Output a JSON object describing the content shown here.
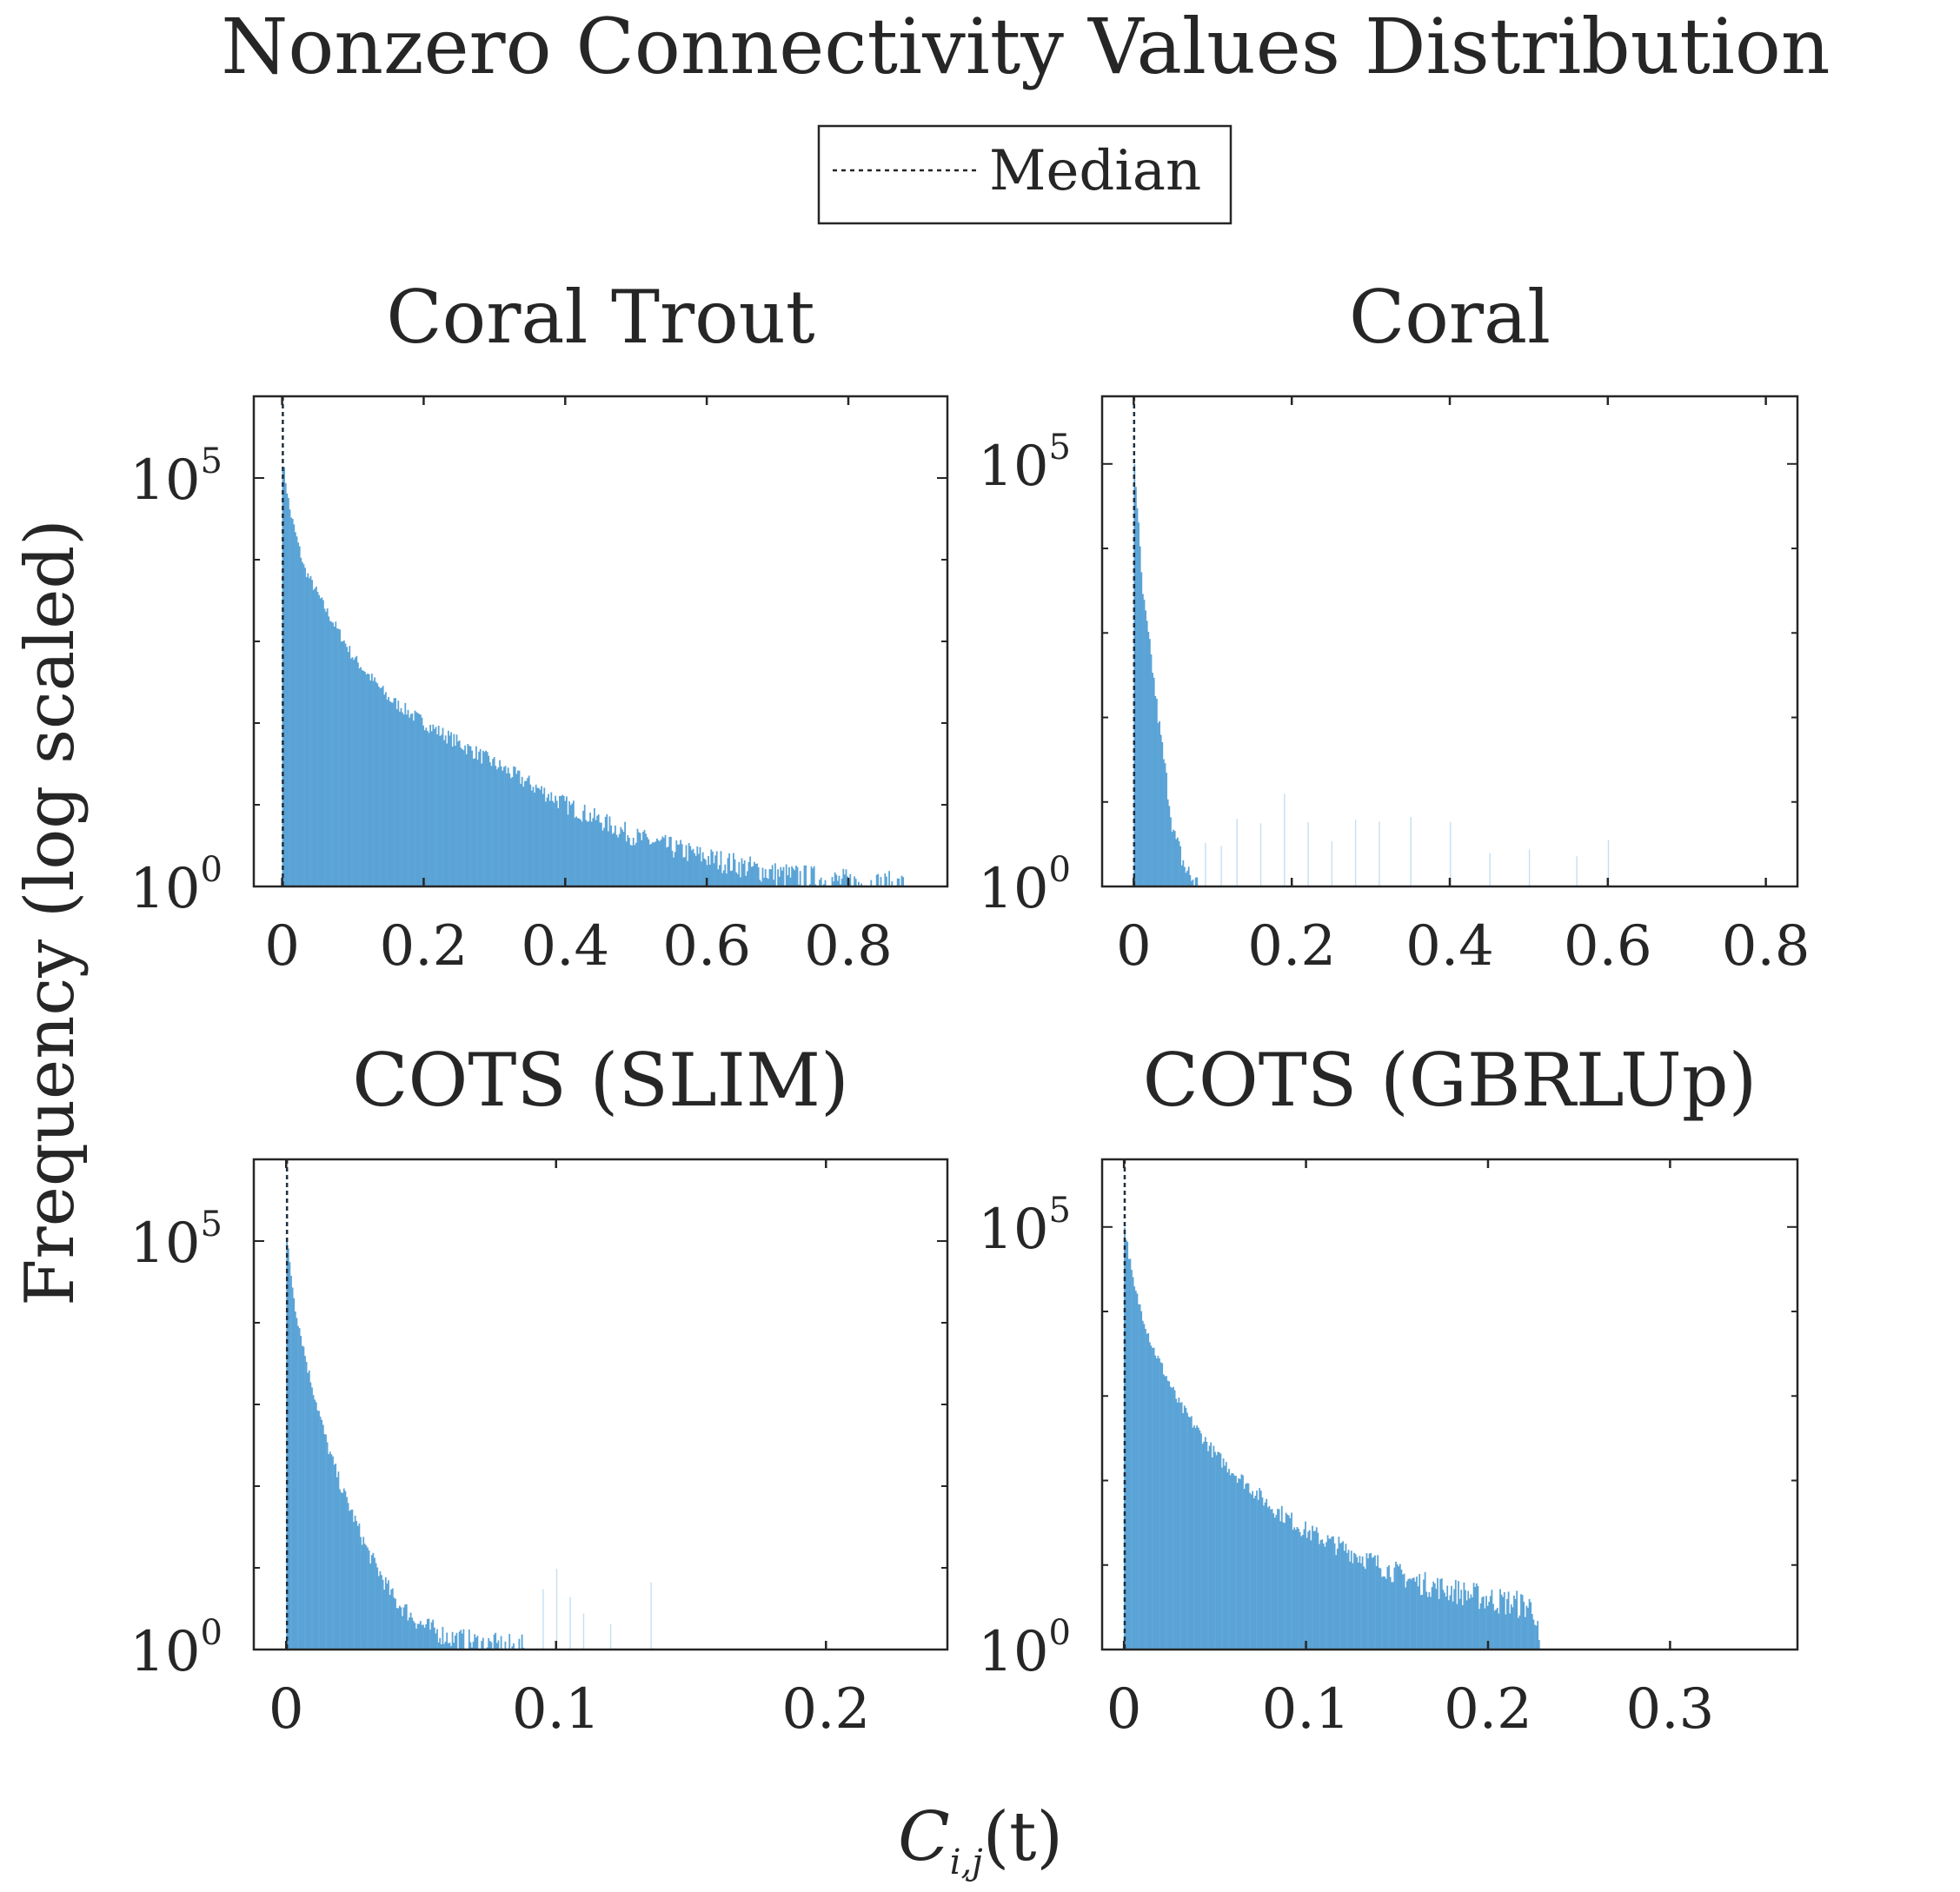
{
  "figure": {
    "title": "Nonzero Connectivity Values Distribution",
    "ylabel": "Frequency (log scaled)",
    "xlabel": {
      "base": "C",
      "subscript": "i,j",
      "argument": "(t)"
    },
    "legend": {
      "label": "Median",
      "placement": "top-center",
      "line_style": "dotted"
    },
    "bar_color": "#5aa3d6",
    "median_color": "#1f2f3f"
  },
  "chart_data": [
    {
      "type": "bar",
      "title": "Coral Trout",
      "xlim": [
        -0.04,
        0.94
      ],
      "xticks": [
        0,
        0.2,
        0.4,
        0.6,
        0.8
      ],
      "xtick_labels": [
        "0",
        "0.2",
        "0.4",
        "0.6",
        "0.8"
      ],
      "yscale": "log",
      "ylim_log10": [
        0,
        6.0
      ],
      "yticks_log10": [
        0,
        5
      ],
      "ytick_labels": [
        {
          "base": "10",
          "exp": "0"
        },
        {
          "base": "10",
          "exp": "5"
        }
      ],
      "median": 0.001,
      "profile": [
        [
          0.0,
          5.2
        ],
        [
          0.01,
          4.6
        ],
        [
          0.03,
          3.9
        ],
        [
          0.06,
          3.4
        ],
        [
          0.1,
          2.8
        ],
        [
          0.15,
          2.3
        ],
        [
          0.2,
          2.0
        ],
        [
          0.3,
          1.5
        ],
        [
          0.4,
          1.0
        ],
        [
          0.5,
          0.6
        ],
        [
          0.6,
          0.35
        ],
        [
          0.7,
          0.15
        ],
        [
          0.8,
          0.05
        ],
        [
          0.88,
          0.0
        ]
      ],
      "x_max": 0.88
    },
    {
      "type": "bar",
      "title": "Coral",
      "xlim": [
        -0.04,
        0.84
      ],
      "xticks": [
        0,
        0.2,
        0.4,
        0.6,
        0.8
      ],
      "xtick_labels": [
        "0",
        "0.2",
        "0.4",
        "0.6",
        "0.8"
      ],
      "yscale": "log",
      "ylim_log10": [
        0,
        5.8
      ],
      "yticks_log10": [
        0,
        5
      ],
      "ytick_labels": [
        {
          "base": "10",
          "exp": "0"
        },
        {
          "base": "10",
          "exp": "5"
        }
      ],
      "median": 0.0005,
      "profile": [
        [
          0.0,
          5.0
        ],
        [
          0.005,
          4.3
        ],
        [
          0.01,
          3.5
        ],
        [
          0.02,
          2.8
        ],
        [
          0.03,
          2.0
        ],
        [
          0.04,
          1.3
        ],
        [
          0.05,
          0.6
        ],
        [
          0.065,
          0.2
        ],
        [
          0.08,
          0.0
        ]
      ],
      "x_max": 0.08,
      "sparse_outliers": [
        0.09,
        0.11,
        0.13,
        0.16,
        0.19,
        0.22,
        0.25,
        0.28,
        0.31,
        0.35,
        0.4,
        0.45,
        0.5,
        0.56,
        0.6
      ]
    },
    {
      "type": "bar",
      "title": "COTS (SLIM)",
      "xlim": [
        -0.012,
        0.245
      ],
      "xticks": [
        0,
        0.1,
        0.2
      ],
      "xtick_labels": [
        "0",
        "0.1",
        "0.2"
      ],
      "yscale": "log",
      "ylim_log10": [
        0,
        6.0
      ],
      "yticks_log10": [
        0,
        5
      ],
      "ytick_labels": [
        {
          "base": "10",
          "exp": "0"
        },
        {
          "base": "10",
          "exp": "5"
        }
      ],
      "median": 0.0003,
      "profile": [
        [
          0.0,
          5.0
        ],
        [
          0.003,
          4.2
        ],
        [
          0.008,
          3.4
        ],
        [
          0.015,
          2.5
        ],
        [
          0.02,
          2.0
        ],
        [
          0.03,
          1.2
        ],
        [
          0.04,
          0.6
        ],
        [
          0.05,
          0.3
        ],
        [
          0.06,
          0.15
        ],
        [
          0.075,
          0.05
        ],
        [
          0.09,
          0.0
        ]
      ],
      "x_max": 0.09,
      "sparse_outliers": [
        0.095,
        0.1,
        0.105,
        0.11,
        0.12,
        0.135
      ]
    },
    {
      "type": "bar",
      "title": "COTS (GBRLUp)",
      "xlim": [
        -0.012,
        0.37
      ],
      "xticks": [
        0,
        0.1,
        0.2,
        0.3
      ],
      "xtick_labels": [
        "0",
        "0.1",
        "0.2",
        "0.3"
      ],
      "yscale": "log",
      "ylim_log10": [
        0,
        5.8
      ],
      "yticks_log10": [
        0,
        5
      ],
      "ytick_labels": [
        {
          "base": "10",
          "exp": "0"
        },
        {
          "base": "10",
          "exp": "5"
        }
      ],
      "median": 0.0004,
      "profile": [
        [
          0.0,
          5.0
        ],
        [
          0.005,
          4.3
        ],
        [
          0.015,
          3.6
        ],
        [
          0.03,
          2.9
        ],
        [
          0.05,
          2.3
        ],
        [
          0.08,
          1.7
        ],
        [
          0.1,
          1.4
        ],
        [
          0.13,
          1.1
        ],
        [
          0.16,
          0.8
        ],
        [
          0.2,
          0.6
        ],
        [
          0.225,
          0.5
        ],
        [
          0.228,
          0.0
        ]
      ],
      "x_max": 0.228
    }
  ]
}
